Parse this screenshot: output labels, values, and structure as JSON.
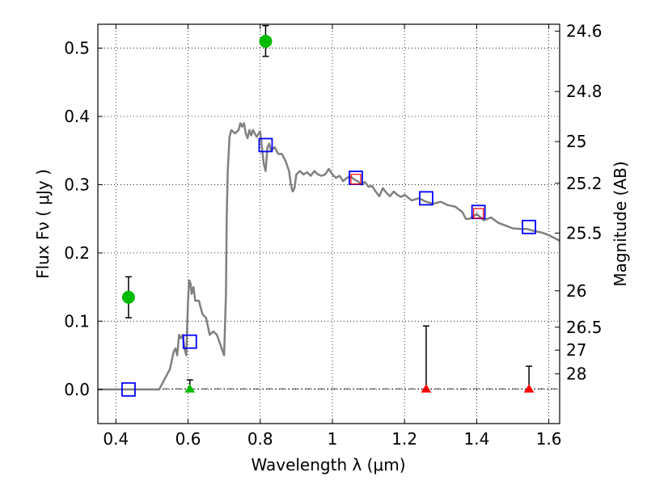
{
  "chart_data": {
    "type": "scatter",
    "title": "",
    "xlabel": "Wavelength  λ (μm)",
    "ylabel": "Flux  Fν  ( μJy )",
    "ylabel_right": "Magnitude (AB)",
    "xlim": [
      0.35,
      1.63
    ],
    "ylim": [
      -0.05,
      0.535
    ],
    "grid": true,
    "x_ticks": [
      0.4,
      0.6,
      0.8,
      1.0,
      1.2,
      1.4,
      1.6
    ],
    "x_tick_labels": [
      "0.4",
      "0.6",
      "0.8",
      "1",
      "1.2",
      "1.4",
      "1.6"
    ],
    "y_ticks": [
      0.0,
      0.1,
      0.2,
      0.3,
      0.4,
      0.5
    ],
    "y_tick_labels": [
      "0.0",
      "0.1",
      "0.2",
      "0.3",
      "0.4",
      "0.5"
    ],
    "right_ticks": [
      {
        "label": "24.6",
        "flux": 0.5248
      },
      {
        "label": "24.8",
        "flux": 0.4365
      },
      {
        "label": "25",
        "flux": 0.3631
      },
      {
        "label": "25.2",
        "flux": 0.302
      },
      {
        "label": "25.5",
        "flux": 0.2291
      },
      {
        "label": "26",
        "flux": 0.1445
      },
      {
        "label": "26.5",
        "flux": 0.0912
      },
      {
        "label": "27",
        "flux": 0.0575
      },
      {
        "label": "28",
        "flux": 0.0229
      }
    ],
    "series": [
      {
        "type": "line",
        "color": "#808080",
        "x": [
          0.35,
          0.52,
          0.53,
          0.55,
          0.56,
          0.565,
          0.57,
          0.575,
          0.58,
          0.585,
          0.59,
          0.595,
          0.6,
          0.603,
          0.607,
          0.61,
          0.615,
          0.62,
          0.63,
          0.64,
          0.65,
          0.66,
          0.67,
          0.68,
          0.69,
          0.7,
          0.705,
          0.707,
          0.71,
          0.715,
          0.72,
          0.73,
          0.74,
          0.745,
          0.75,
          0.755,
          0.76,
          0.765,
          0.77,
          0.775,
          0.78,
          0.79,
          0.8,
          0.81,
          0.815,
          0.82,
          0.825,
          0.83,
          0.84,
          0.85,
          0.86,
          0.87,
          0.88,
          0.885,
          0.89,
          0.895,
          0.9,
          0.91,
          0.92,
          0.93,
          0.94,
          0.95,
          0.96,
          0.97,
          0.98,
          0.99,
          1.0,
          1.01,
          1.02,
          1.03,
          1.04,
          1.05,
          1.06,
          1.07,
          1.08,
          1.09,
          1.1,
          1.11,
          1.12,
          1.13,
          1.14,
          1.15,
          1.16,
          1.17,
          1.18,
          1.19,
          1.2,
          1.22,
          1.24,
          1.26,
          1.28,
          1.3,
          1.32,
          1.34,
          1.36,
          1.37,
          1.38,
          1.4,
          1.42,
          1.44,
          1.46,
          1.48,
          1.5,
          1.52,
          1.54,
          1.56,
          1.58,
          1.6,
          1.63
        ],
        "y": [
          0.0,
          0.0,
          0.01,
          0.03,
          0.055,
          0.06,
          0.05,
          0.08,
          0.075,
          0.08,
          0.06,
          0.05,
          0.13,
          0.16,
          0.155,
          0.14,
          0.15,
          0.13,
          0.13,
          0.11,
          0.105,
          0.08,
          0.085,
          0.08,
          0.065,
          0.05,
          0.14,
          0.25,
          0.32,
          0.37,
          0.38,
          0.375,
          0.38,
          0.39,
          0.385,
          0.39,
          0.375,
          0.368,
          0.38,
          0.372,
          0.38,
          0.37,
          0.378,
          0.33,
          0.32,
          0.355,
          0.36,
          0.35,
          0.355,
          0.345,
          0.345,
          0.335,
          0.32,
          0.3,
          0.29,
          0.295,
          0.315,
          0.32,
          0.315,
          0.318,
          0.313,
          0.32,
          0.315,
          0.313,
          0.315,
          0.323,
          0.315,
          0.31,
          0.313,
          0.305,
          0.31,
          0.312,
          0.308,
          0.305,
          0.3,
          0.304,
          0.297,
          0.298,
          0.29,
          0.283,
          0.295,
          0.288,
          0.283,
          0.29,
          0.285,
          0.282,
          0.285,
          0.277,
          0.28,
          0.275,
          0.272,
          0.275,
          0.27,
          0.268,
          0.26,
          0.25,
          0.25,
          0.257,
          0.248,
          0.252,
          0.244,
          0.24,
          0.236,
          0.235,
          0.235,
          0.232,
          0.23,
          0.226,
          0.218
        ]
      },
      {
        "type": "scatter",
        "marker": "square",
        "color": "#0000ff",
        "x": [
          0.435,
          0.605,
          0.815,
          1.065,
          1.26,
          1.405,
          1.545
        ],
        "y": [
          0.0,
          0.07,
          0.358,
          0.31,
          0.28,
          0.26,
          0.238
        ]
      },
      {
        "type": "scatter",
        "marker": "square",
        "color": "#ff0000",
        "x": [
          1.065,
          1.405
        ],
        "y": [
          0.308,
          0.258
        ]
      },
      {
        "type": "errorbar",
        "marker": "circle",
        "color": "#00bb00",
        "x": [
          0.435,
          0.815
        ],
        "y": [
          0.135,
          0.51
        ],
        "yerr_low": [
          0.105,
          0.488
        ],
        "yerr_high": [
          0.165,
          0.533
        ]
      },
      {
        "type": "errorbar",
        "marker": "triangle",
        "color": "#00bb00",
        "x": [
          0.605
        ],
        "y": [
          0.0
        ],
        "yerr_low": [
          0.0
        ],
        "yerr_high": [
          0.014
        ]
      },
      {
        "type": "errorbar",
        "marker": "triangle",
        "color": "#ff0000",
        "x": [
          1.26,
          1.545
        ],
        "y": [
          0.0,
          0.0
        ],
        "yerr_low": [
          0.0,
          0.0
        ],
        "yerr_high": [
          0.093,
          0.034
        ]
      }
    ]
  }
}
